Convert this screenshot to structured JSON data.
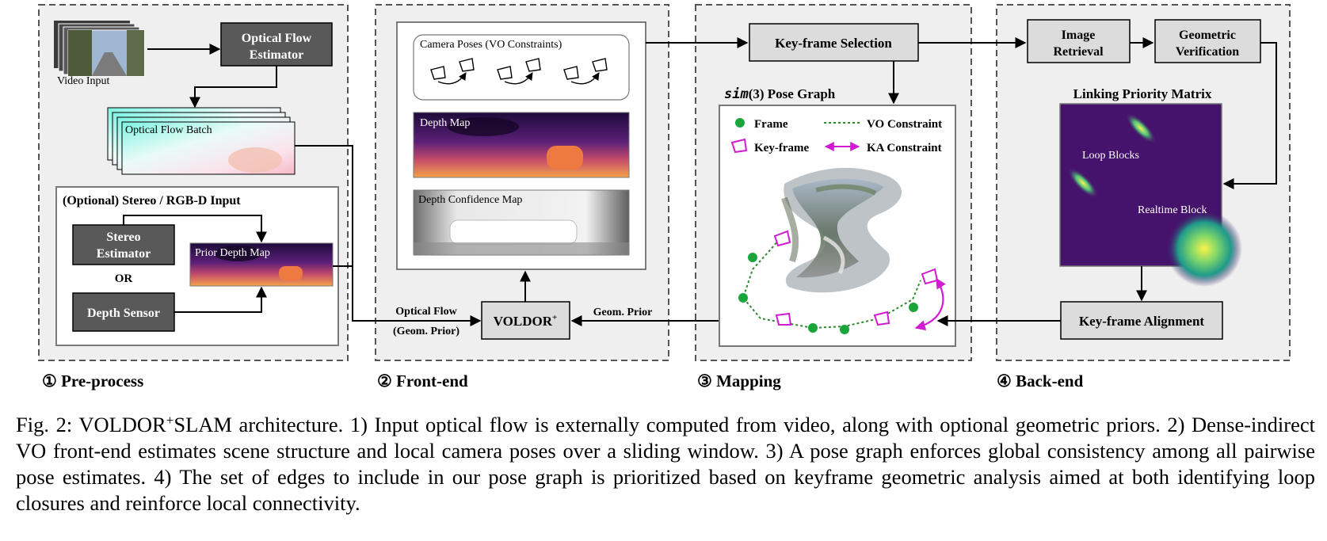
{
  "sections": {
    "preprocess": "① Pre-process",
    "frontend": "② Front-end",
    "mapping": "③ Mapping",
    "backend": "④ Back-end"
  },
  "preprocess": {
    "video_input": "Video Input",
    "optical_flow_estimator": [
      "Optical Flow",
      "Estimator"
    ],
    "optical_flow_batch": "Optical Flow Batch",
    "optional_title": "(Optional) Stereo / RGB-D Input",
    "stereo_estimator": [
      "Stereo",
      "Estimator"
    ],
    "or": "OR",
    "depth_sensor": "Depth Sensor",
    "prior_depth_map": "Prior Depth Map"
  },
  "frontend": {
    "camera_poses": "Camera Poses (VO Constraints)",
    "depth_map": "Depth Map",
    "depth_confidence": "Depth Confidence Map",
    "voldor_base": "VOLDOR",
    "voldor_sup": "+",
    "optical_flow_label": [
      "Optical Flow",
      "(Geom. Prior)"
    ],
    "geom_prior": "Geom. Prior"
  },
  "mapping": {
    "keyframe_selection": "Key-frame Selection",
    "pose_graph_math": "sim",
    "pose_graph_rest": "(3) Pose Graph",
    "legend": {
      "frame": "Frame",
      "vo_constraint": "VO Constraint",
      "keyframe": "Key-frame",
      "ka_constraint": "KA Constraint"
    }
  },
  "backend": {
    "image_retrieval": [
      "Image",
      "Retrieval"
    ],
    "geometric_verification": [
      "Geometric",
      "Verification"
    ],
    "linking_priority_matrix": "Linking Priority Matrix",
    "loop_blocks": "Loop Blocks",
    "realtime_block": "Realtime Block",
    "keyframe_alignment": "Key-frame Alignment"
  },
  "caption": {
    "prefix": "Fig. 2: VOLDOR",
    "sup": "+",
    "text": "SLAM architecture. 1) Input optical flow is externally computed from video, along with optional geometric priors. 2) Dense-indirect VO front-end estimates scene structure and local camera poses over a sliding window. 3) A pose graph enforces global consistency among all pairwise pose estimates. 4) The set of edges to include in our pose graph is prioritized based on keyframe geometric analysis aimed at both identifying loop closures and reinforce local connectivity."
  },
  "colors": {
    "panel_bg": "#efefef",
    "box_dark": "#595959",
    "box_light": "#dcdcdc",
    "frame_green": "#1aa53a",
    "keyframe_magenta": "#d11bd1",
    "matrix_bg": "#45136b"
  }
}
